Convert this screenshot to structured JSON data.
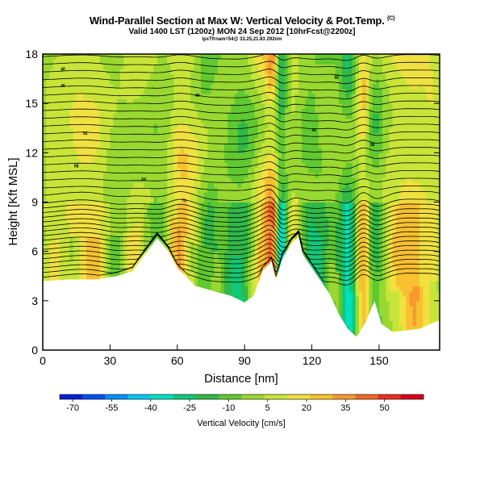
{
  "header": {
    "title": "Wind-Parallel Section at Max W: Vertical Velocity & Pot.Temp.",
    "title_mark": "(C)",
    "subtitle": "Valid 1400 LST (1200z) MON 24 Sep 2012 [10hrFcst@2200z]",
    "coords": "lpxTfrnam=54@ 33.25,21.83 292nm"
  },
  "chart_data": {
    "type": "heatmap",
    "xlabel": "Distance [nm]",
    "ylabel": "Height [Kft MSL]",
    "xlim": [
      0,
      177
    ],
    "ylim": [
      0,
      18
    ],
    "x_ticks": [
      "0",
      "30",
      "60",
      "90",
      "120",
      "150"
    ],
    "x_tick_values": [
      0,
      30,
      60,
      90,
      120,
      150
    ],
    "y_ticks": [
      "0",
      "3",
      "6",
      "9",
      "12",
      "15",
      "18"
    ],
    "y_tick_values": [
      0,
      3,
      6,
      9,
      12,
      15,
      18
    ],
    "colorbar": {
      "title": "Vertical Velocity [cm/s]",
      "ticks": [
        "-70",
        "-55",
        "-40",
        "-25",
        "-10",
        "5",
        "20",
        "35",
        "50"
      ],
      "tick_values": [
        -70,
        -55,
        -40,
        -25,
        -10,
        5,
        20,
        35,
        50
      ],
      "range": [
        -75,
        65
      ],
      "colors": [
        "#0020d8",
        "#0050f0",
        "#0090f8",
        "#00c8f0",
        "#00e0c0",
        "#10c878",
        "#30b848",
        "#60c830",
        "#98d830",
        "#c8e438",
        "#f0e040",
        "#f8c030",
        "#f89830",
        "#f06828",
        "#e83020",
        "#d80020"
      ]
    },
    "updraft_columns": [
      {
        "x": 13,
        "w": 8,
        "amp": 10
      },
      {
        "x": 24,
        "w": 10,
        "amp": 14
      },
      {
        "x": 33,
        "w": 6,
        "amp": -14
      },
      {
        "x": 42,
        "w": 8,
        "amp": 8
      },
      {
        "x": 52,
        "w": 10,
        "amp": -10
      },
      {
        "x": 60,
        "w": 4,
        "amp": 18
      },
      {
        "x": 66,
        "w": 6,
        "amp": 28
      },
      {
        "x": 72,
        "w": 8,
        "amp": -22
      },
      {
        "x": 80,
        "w": 6,
        "amp": 10
      },
      {
        "x": 88,
        "w": 10,
        "amp": -26
      },
      {
        "x": 98,
        "w": 5,
        "amp": 24
      },
      {
        "x": 103,
        "w": 3,
        "amp": 46
      },
      {
        "x": 106,
        "w": 3,
        "amp": -58
      },
      {
        "x": 111,
        "w": 6,
        "amp": 10
      },
      {
        "x": 118,
        "w": 6,
        "amp": -20
      },
      {
        "x": 126,
        "w": 6,
        "amp": -12
      },
      {
        "x": 136,
        "w": 4,
        "amp": -34
      },
      {
        "x": 143,
        "w": 3,
        "amp": 38
      },
      {
        "x": 148,
        "w": 5,
        "amp": -28
      },
      {
        "x": 156,
        "w": 8,
        "amp": 12
      },
      {
        "x": 166,
        "w": 8,
        "amp": 16
      },
      {
        "x": 174,
        "w": 4,
        "amp": 10
      }
    ],
    "terrain_kft": [
      [
        0,
        4.2
      ],
      [
        12,
        4.3
      ],
      [
        24,
        4.3
      ],
      [
        33,
        4.5
      ],
      [
        40,
        4.8
      ],
      [
        46,
        5.9
      ],
      [
        51,
        6.8
      ],
      [
        53,
        6.5
      ],
      [
        56,
        6.0
      ],
      [
        60,
        5.0
      ],
      [
        63,
        4.6
      ],
      [
        68,
        3.9
      ],
      [
        76,
        3.6
      ],
      [
        84,
        3.3
      ],
      [
        90,
        2.9
      ],
      [
        94,
        3.3
      ],
      [
        98,
        4.8
      ],
      [
        102,
        5.4
      ],
      [
        104,
        4.3
      ],
      [
        107,
        5.6
      ],
      [
        111,
        6.5
      ],
      [
        114,
        6.9
      ],
      [
        116,
        5.8
      ],
      [
        120,
        5.0
      ],
      [
        124,
        4.2
      ],
      [
        128,
        3.4
      ],
      [
        132,
        2.2
      ],
      [
        136,
        1.3
      ],
      [
        140,
        0.8
      ],
      [
        144,
        1.7
      ],
      [
        148,
        3.0
      ],
      [
        151,
        1.6
      ],
      [
        156,
        1.1
      ],
      [
        162,
        1.2
      ],
      [
        168,
        1.3
      ],
      [
        173,
        1.6
      ],
      [
        177,
        1.8
      ]
    ],
    "isentropes": {
      "count": 36,
      "labels": [
        "40",
        "46",
        "52",
        "58",
        "64",
        "70"
      ]
    }
  }
}
